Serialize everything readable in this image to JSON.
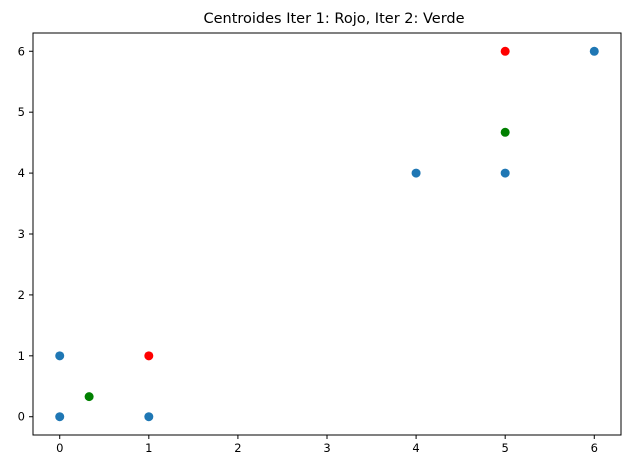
{
  "chart_data": {
    "type": "scatter",
    "title": "Centroides Iter 1: Rojo, Iter 2: Verde",
    "xlabel": "",
    "ylabel": "",
    "xlim": [
      -0.3,
      6.3
    ],
    "ylim": [
      -0.3,
      6.3
    ],
    "xticks": [
      0,
      1,
      2,
      3,
      4,
      5,
      6
    ],
    "yticks": [
      0,
      1,
      2,
      3,
      4,
      5,
      6
    ],
    "grid": false,
    "series": [
      {
        "color": "#1f77b4",
        "points": [
          [
            0,
            0
          ],
          [
            1,
            0
          ],
          [
            0,
            1
          ],
          [
            4,
            4
          ],
          [
            5,
            4
          ],
          [
            6,
            6
          ]
        ]
      },
      {
        "color": "#ff0000",
        "points": [
          [
            1,
            1
          ],
          [
            5,
            6
          ]
        ]
      },
      {
        "color": "#008000",
        "points": [
          [
            0.33,
            0.33
          ],
          [
            5,
            4.67
          ]
        ]
      }
    ]
  }
}
